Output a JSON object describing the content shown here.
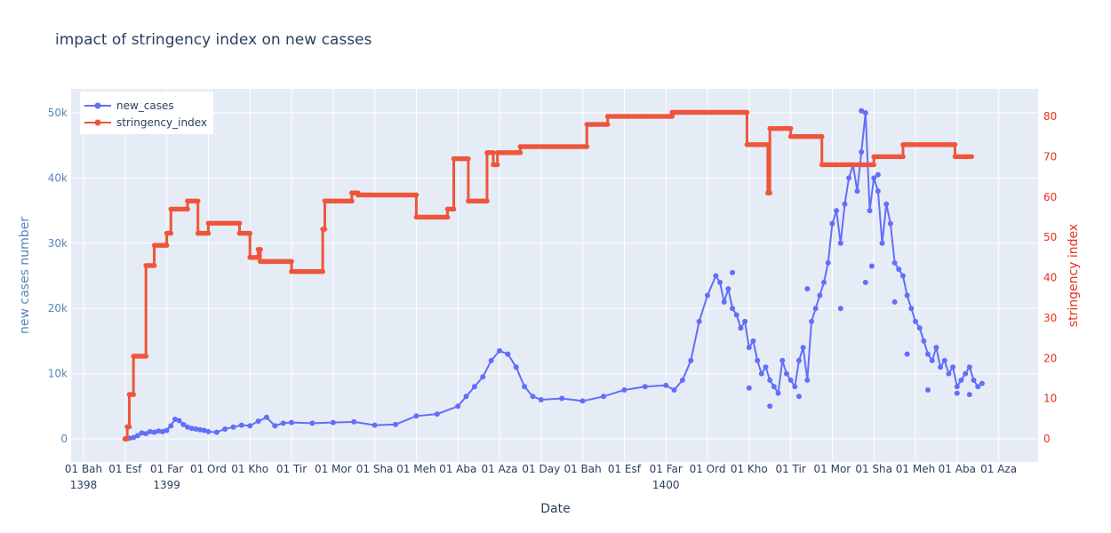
{
  "chart_data": {
    "type": "line",
    "title": "impact of stringency index on new casses",
    "xlabel": "Date",
    "ylabel": "new cases number",
    "y2label": "stringency index",
    "legend": [
      "new_cases",
      "stringency_index"
    ],
    "legend_position": "top-left",
    "grid": true,
    "xlim": [
      0,
      24
    ],
    "ylim": [
      -3000,
      54000
    ],
    "y2lim": [
      -6,
      88
    ],
    "x_ticks": [
      {
        "x": 0,
        "label": "01 Bah",
        "year": "1398"
      },
      {
        "x": 1,
        "label": "01 Esf",
        "year": ""
      },
      {
        "x": 2,
        "label": "01 Far",
        "year": "1399"
      },
      {
        "x": 3,
        "label": "01 Ord",
        "year": ""
      },
      {
        "x": 4,
        "label": "01 Kho",
        "year": ""
      },
      {
        "x": 5,
        "label": "01 Tir",
        "year": ""
      },
      {
        "x": 6,
        "label": "01 Mor",
        "year": ""
      },
      {
        "x": 7,
        "label": "01 Sha",
        "year": ""
      },
      {
        "x": 8,
        "label": "01 Meh",
        "year": ""
      },
      {
        "x": 9,
        "label": "01 Aba",
        "year": ""
      },
      {
        "x": 10,
        "label": "01 Aza",
        "year": ""
      },
      {
        "x": 11,
        "label": "01 Day",
        "year": ""
      },
      {
        "x": 12,
        "label": "01 Bah",
        "year": ""
      },
      {
        "x": 13,
        "label": "01 Esf",
        "year": ""
      },
      {
        "x": 14,
        "label": "01 Far",
        "year": "1400"
      },
      {
        "x": 15,
        "label": "01 Ord",
        "year": ""
      },
      {
        "x": 16,
        "label": "01 Kho",
        "year": ""
      },
      {
        "x": 17,
        "label": "01 Tir",
        "year": ""
      },
      {
        "x": 18,
        "label": "01 Mor",
        "year": ""
      },
      {
        "x": 19,
        "label": "01 Sha",
        "year": ""
      },
      {
        "x": 20,
        "label": "01 Meh",
        "year": ""
      },
      {
        "x": 21,
        "label": "01 Aba",
        "year": ""
      },
      {
        "x": 22,
        "label": "01 Aza",
        "year": ""
      }
    ],
    "y_ticks": [
      {
        "value": 0,
        "label": "0"
      },
      {
        "value": 10000,
        "label": "10k"
      },
      {
        "value": 20000,
        "label": "20k"
      },
      {
        "value": 30000,
        "label": "30k"
      },
      {
        "value": 40000,
        "label": "40k"
      },
      {
        "value": 50000,
        "label": "50k"
      }
    ],
    "y2_ticks": [
      {
        "value": 0,
        "label": "0"
      },
      {
        "value": 10,
        "label": "10"
      },
      {
        "value": 20,
        "label": "20"
      },
      {
        "value": 30,
        "label": "30"
      },
      {
        "value": 40,
        "label": "40"
      },
      {
        "value": 50,
        "label": "50"
      },
      {
        "value": 60,
        "label": "60"
      },
      {
        "value": 70,
        "label": "70"
      },
      {
        "value": 80,
        "label": "80"
      }
    ],
    "series": [
      {
        "name": "new_cases",
        "axis": "y",
        "color": "#636efa",
        "x": [
          1.0,
          1.1,
          1.2,
          1.3,
          1.4,
          1.5,
          1.6,
          1.7,
          1.8,
          1.9,
          2.0,
          2.1,
          2.2,
          2.3,
          2.4,
          2.5,
          2.6,
          2.7,
          2.8,
          2.9,
          3.0,
          3.2,
          3.4,
          3.6,
          3.8,
          4.0,
          4.2,
          4.4,
          4.6,
          4.8,
          5.0,
          5.5,
          6.0,
          6.5,
          7.0,
          7.5,
          8.0,
          8.5,
          9.0,
          9.2,
          9.4,
          9.6,
          9.8,
          10.0,
          10.2,
          10.4,
          10.6,
          10.8,
          11.0,
          11.5,
          12.0,
          12.5,
          13.0,
          13.5,
          14.0,
          14.2,
          14.4,
          14.6,
          14.8,
          15.0,
          15.2,
          15.3,
          15.4,
          15.5,
          15.6,
          15.7,
          15.8,
          15.9,
          16.0,
          16.1,
          16.2,
          16.3,
          16.4,
          16.5,
          16.6,
          16.7,
          16.8,
          16.9,
          17.0,
          17.1,
          17.2,
          17.3,
          17.4,
          17.5,
          17.6,
          17.7,
          17.8,
          17.9,
          18.0,
          18.1,
          18.2,
          18.3,
          18.4,
          18.5,
          18.6,
          18.7,
          18.8,
          18.9,
          19.0,
          19.1,
          19.2,
          19.3,
          19.4,
          19.5,
          19.6,
          19.7,
          19.8,
          19.9,
          20.0,
          20.1,
          20.2,
          20.3,
          20.4,
          20.5,
          20.6,
          20.7,
          20.8,
          20.9,
          21.0,
          21.1,
          21.2,
          21.3,
          21.4,
          21.5,
          21.6
        ],
        "y": [
          0,
          100,
          200,
          500,
          900,
          800,
          1100,
          1000,
          1200,
          1100,
          1300,
          2000,
          3000,
          2800,
          2200,
          1800,
          1600,
          1500,
          1400,
          1300,
          1100,
          1000,
          1500,
          1800,
          2100,
          2000,
          2700,
          3300,
          2000,
          2400,
          2500,
          2400,
          2500,
          2600,
          2100,
          2200,
          3500,
          3800,
          5000,
          6500,
          8000,
          9500,
          12000,
          13500,
          13000,
          11000,
          8000,
          6500,
          6000,
          6200,
          5800,
          6500,
          7500,
          8000,
          8200,
          7500,
          9000,
          12000,
          18000,
          22000,
          25000,
          24000,
          21000,
          23000,
          20000,
          19000,
          17000,
          18000,
          14000,
          15000,
          12000,
          10000,
          11000,
          9000,
          8000,
          7000,
          12000,
          10000,
          9000,
          8000,
          12000,
          14000,
          9000,
          18000,
          20000,
          22000,
          24000,
          27000,
          33000,
          35000,
          30000,
          36000,
          40000,
          42000,
          38000,
          44000,
          50000,
          35000,
          40000,
          38000,
          30000,
          36000,
          33000,
          27000,
          26000,
          25000,
          22000,
          20000,
          18000,
          17000,
          15000,
          13000,
          12000,
          14000,
          11000,
          12000,
          10000,
          11000,
          8000,
          9000,
          10000,
          11000,
          9000,
          8000,
          8500
        ],
        "spikes": [
          [
            15.6,
            25500
          ],
          [
            16.0,
            7800
          ],
          [
            16.5,
            5000
          ],
          [
            17.2,
            6500
          ],
          [
            17.4,
            23000
          ],
          [
            18.2,
            20000
          ],
          [
            18.7,
            50300
          ],
          [
            18.8,
            24000
          ],
          [
            18.95,
            26500
          ],
          [
            19.1,
            40500
          ],
          [
            19.5,
            21000
          ],
          [
            19.8,
            13000
          ],
          [
            20.3,
            7500
          ],
          [
            21.0,
            7000
          ],
          [
            21.3,
            6800
          ]
        ]
      },
      {
        "name": "stringency_index",
        "axis": "y2",
        "color": "#ef553b",
        "steps": [
          [
            1.0,
            0
          ],
          [
            1.05,
            3
          ],
          [
            1.1,
            11
          ],
          [
            1.2,
            20.5
          ],
          [
            1.5,
            43
          ],
          [
            1.7,
            48
          ],
          [
            2.0,
            51
          ],
          [
            2.1,
            57
          ],
          [
            2.5,
            59
          ],
          [
            2.75,
            51
          ],
          [
            3.0,
            53.5
          ],
          [
            3.75,
            51
          ],
          [
            4.0,
            45
          ],
          [
            4.2,
            47
          ],
          [
            4.25,
            44
          ],
          [
            5.0,
            41.5
          ],
          [
            5.75,
            52
          ],
          [
            5.8,
            59
          ],
          [
            6.45,
            61
          ],
          [
            6.6,
            60.5
          ],
          [
            8.0,
            55
          ],
          [
            8.75,
            57
          ],
          [
            8.9,
            69.5
          ],
          [
            9.25,
            59
          ],
          [
            9.7,
            71
          ],
          [
            9.85,
            68
          ],
          [
            9.95,
            71
          ],
          [
            10.5,
            72.5
          ],
          [
            12.1,
            78
          ],
          [
            12.6,
            80
          ],
          [
            14.15,
            81
          ],
          [
            15.95,
            73
          ],
          [
            16.45,
            61
          ],
          [
            16.5,
            77
          ],
          [
            17.0,
            75
          ],
          [
            17.75,
            68
          ],
          [
            19.0,
            70
          ],
          [
            19.7,
            73
          ],
          [
            20.95,
            70
          ],
          [
            21.25,
            70
          ]
        ],
        "end": 21.35
      }
    ]
  },
  "ui": {
    "accent_left": "#5a86b8",
    "accent_right": "#e8311c",
    "plot_bg": "#e5ecf6"
  }
}
